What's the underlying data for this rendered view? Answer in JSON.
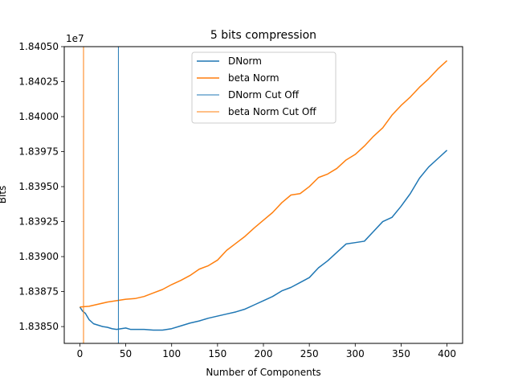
{
  "chart_data": {
    "type": "line",
    "title": "5 bits compression",
    "xlabel": "Number of Components",
    "ylabel": "Bits",
    "y_offset_label": "1e7",
    "xlim": [
      -17,
      417
    ],
    "ylim": [
      18383800,
      18405000
    ],
    "xticks": [
      0,
      50,
      100,
      150,
      200,
      250,
      300,
      350,
      400
    ],
    "yticks": [
      {
        "value": 18385000,
        "label": "1.83850"
      },
      {
        "value": 18387500,
        "label": "1.83875"
      },
      {
        "value": 18390000,
        "label": "1.83900"
      },
      {
        "value": 18392500,
        "label": "1.83925"
      },
      {
        "value": 18395000,
        "label": "1.83950"
      },
      {
        "value": 18397500,
        "label": "1.83975"
      },
      {
        "value": 18400000,
        "label": "1.84000"
      },
      {
        "value": 18402500,
        "label": "1.84025"
      },
      {
        "value": 18405000,
        "label": "1.84050"
      }
    ],
    "grid": false,
    "legend_position": "top-center",
    "series": [
      {
        "name": "DNorm",
        "color": "#1f77b4",
        "points": [
          [
            0,
            18386400
          ],
          [
            3,
            18386100
          ],
          [
            6,
            18385950
          ],
          [
            10,
            18385500
          ],
          [
            15,
            18385200
          ],
          [
            20,
            18385100
          ],
          [
            25,
            18385000
          ],
          [
            30,
            18384950
          ],
          [
            35,
            18384850
          ],
          [
            40,
            18384800
          ],
          [
            45,
            18384850
          ],
          [
            50,
            18384900
          ],
          [
            55,
            18384800
          ],
          [
            60,
            18384800
          ],
          [
            70,
            18384800
          ],
          [
            80,
            18384750
          ],
          [
            90,
            18384750
          ],
          [
            100,
            18384850
          ],
          [
            110,
            18385050
          ],
          [
            120,
            18385250
          ],
          [
            130,
            18385400
          ],
          [
            140,
            18385600
          ],
          [
            150,
            18385750
          ],
          [
            160,
            18385900
          ],
          [
            170,
            18386050
          ],
          [
            180,
            18386250
          ],
          [
            190,
            18386550
          ],
          [
            200,
            18386850
          ],
          [
            210,
            18387150
          ],
          [
            220,
            18387550
          ],
          [
            230,
            18387800
          ],
          [
            240,
            18388150
          ],
          [
            250,
            18388500
          ],
          [
            260,
            18389200
          ],
          [
            270,
            18389700
          ],
          [
            280,
            18390300
          ],
          [
            290,
            18390900
          ],
          [
            300,
            18391000
          ],
          [
            310,
            18391100
          ],
          [
            320,
            18391800
          ],
          [
            330,
            18392500
          ],
          [
            340,
            18392800
          ],
          [
            350,
            18393600
          ],
          [
            360,
            18394500
          ],
          [
            370,
            18395600
          ],
          [
            380,
            18396400
          ],
          [
            390,
            18397000
          ],
          [
            400,
            18397600
          ]
        ]
      },
      {
        "name": "beta Norm",
        "color": "#ff7f0e",
        "points": [
          [
            0,
            18386400
          ],
          [
            10,
            18386450
          ],
          [
            20,
            18386600
          ],
          [
            30,
            18386750
          ],
          [
            40,
            18386850
          ],
          [
            50,
            18386950
          ],
          [
            60,
            18387000
          ],
          [
            70,
            18387150
          ],
          [
            80,
            18387400
          ],
          [
            90,
            18387650
          ],
          [
            100,
            18388000
          ],
          [
            110,
            18388300
          ],
          [
            120,
            18388650
          ],
          [
            130,
            18389100
          ],
          [
            140,
            18389350
          ],
          [
            150,
            18389750
          ],
          [
            160,
            18390450
          ],
          [
            170,
            18390950
          ],
          [
            180,
            18391450
          ],
          [
            190,
            18392050
          ],
          [
            200,
            18392600
          ],
          [
            210,
            18393150
          ],
          [
            220,
            18393850
          ],
          [
            230,
            18394400
          ],
          [
            240,
            18394500
          ],
          [
            250,
            18395000
          ],
          [
            260,
            18395650
          ],
          [
            270,
            18395900
          ],
          [
            280,
            18396300
          ],
          [
            290,
            18396900
          ],
          [
            300,
            18397300
          ],
          [
            310,
            18397900
          ],
          [
            320,
            18398600
          ],
          [
            330,
            18399200
          ],
          [
            340,
            18400100
          ],
          [
            350,
            18400800
          ],
          [
            360,
            18401400
          ],
          [
            370,
            18402100
          ],
          [
            380,
            18402700
          ],
          [
            390,
            18403400
          ],
          [
            400,
            18404000
          ]
        ]
      },
      {
        "name": "DNorm Cut Off",
        "color": "#1f77b4",
        "vline_x": 42
      },
      {
        "name": "beta Norm Cut Off",
        "color": "#ff7f0e",
        "vline_x": 4
      }
    ]
  }
}
